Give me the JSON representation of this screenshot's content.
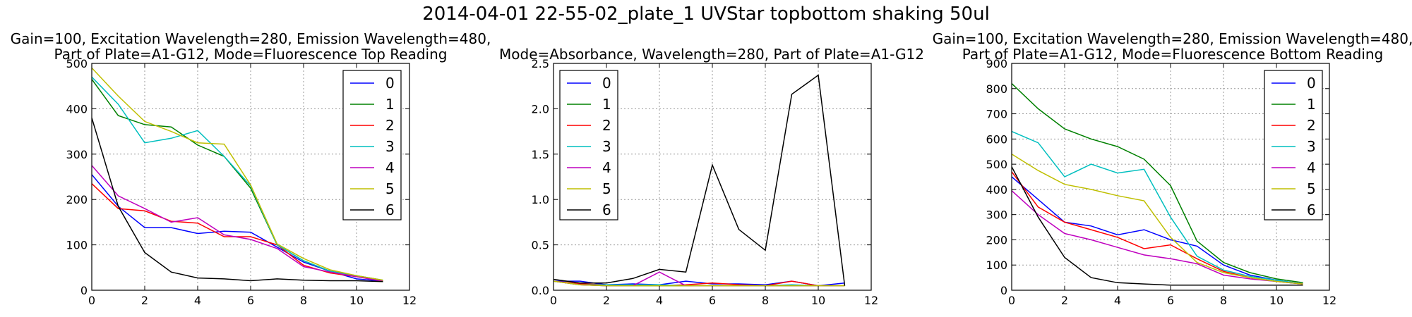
{
  "suptitle": "2014-04-01 22-55-02_plate_1 UVStar topbottom shaking 50ul",
  "colors": [
    "#0000ff",
    "#008000",
    "#ff0000",
    "#00bfbf",
    "#bf00bf",
    "#bfbf00",
    "#000000"
  ],
  "chart_data": [
    {
      "type": "line",
      "title_lines": [
        "Gain=100, Excitation Wavelength=280, Emission Wavelength=480,",
        "Part of Plate=A1-G12, Mode=Fluorescence Top Reading"
      ],
      "xlim": [
        0,
        12
      ],
      "ylim": [
        0,
        500
      ],
      "xticks": [
        0,
        2,
        4,
        6,
        8,
        10,
        12
      ],
      "yticks": [
        0,
        100,
        200,
        300,
        400,
        500
      ],
      "grid": true,
      "legend_position": "upper-right",
      "x": [
        0,
        1,
        2,
        3,
        4,
        5,
        6,
        7,
        8,
        9,
        10,
        11
      ],
      "series": [
        {
          "name": "0",
          "values": [
            255,
            185,
            138,
            138,
            125,
            130,
            128,
            95,
            62,
            42,
            25,
            20
          ]
        },
        {
          "name": "1",
          "values": [
            465,
            385,
            365,
            360,
            320,
            295,
            225,
            100,
            65,
            42,
            32,
            22
          ]
        },
        {
          "name": "2",
          "values": [
            235,
            180,
            175,
            152,
            148,
            118,
            118,
            100,
            55,
            38,
            30,
            20
          ]
        },
        {
          "name": "3",
          "values": [
            470,
            410,
            325,
            335,
            352,
            295,
            230,
            100,
            65,
            42,
            32,
            20
          ]
        },
        {
          "name": "4",
          "values": [
            275,
            208,
            180,
            150,
            160,
            122,
            112,
            92,
            52,
            40,
            30,
            20
          ]
        },
        {
          "name": "5",
          "values": [
            490,
            428,
            372,
            350,
            325,
            322,
            232,
            102,
            70,
            45,
            32,
            22
          ]
        },
        {
          "name": "6",
          "values": [
            380,
            185,
            83,
            40,
            27,
            25,
            21,
            25,
            22,
            21,
            21,
            19
          ]
        }
      ]
    },
    {
      "type": "line",
      "title_lines": [
        "Mode=Absorbance, Wavelength=280, Part of Plate=A1-G12"
      ],
      "xlim": [
        0,
        12
      ],
      "ylim": [
        0,
        2.5
      ],
      "xticks": [
        0,
        2,
        4,
        6,
        8,
        10,
        12
      ],
      "yticks": [
        0.0,
        0.5,
        1.0,
        1.5,
        2.0,
        2.5
      ],
      "ytick_labels": [
        "0.0",
        "0.5",
        "1.0",
        "1.5",
        "2.0",
        "2.5"
      ],
      "grid": true,
      "legend_position": "upper-left",
      "x": [
        0,
        1,
        2,
        3,
        4,
        5,
        6,
        7,
        8,
        9,
        10,
        11
      ],
      "series": [
        {
          "name": "0",
          "values": [
            0.1,
            0.1,
            0.06,
            0.07,
            0.06,
            0.1,
            0.07,
            0.07,
            0.06,
            0.1,
            0.05,
            0.08
          ]
        },
        {
          "name": "1",
          "values": [
            0.1,
            0.06,
            0.05,
            0.05,
            0.05,
            0.05,
            0.05,
            0.05,
            0.05,
            0.05,
            0.05,
            0.05
          ]
        },
        {
          "name": "2",
          "values": [
            0.1,
            0.07,
            0.06,
            0.06,
            0.05,
            0.06,
            0.08,
            0.06,
            0.05,
            0.1,
            0.05,
            0.05
          ]
        },
        {
          "name": "3",
          "values": [
            0.1,
            0.06,
            0.06,
            0.06,
            0.06,
            0.05,
            0.05,
            0.05,
            0.05,
            0.06,
            0.05,
            0.05
          ]
        },
        {
          "name": "4",
          "values": [
            0.1,
            0.06,
            0.05,
            0.05,
            0.2,
            0.05,
            0.05,
            0.05,
            0.05,
            0.05,
            0.05,
            0.05
          ]
        },
        {
          "name": "5",
          "values": [
            0.1,
            0.06,
            0.05,
            0.05,
            0.05,
            0.05,
            0.05,
            0.05,
            0.05,
            0.05,
            0.05,
            0.05
          ]
        },
        {
          "name": "6",
          "values": [
            0.12,
            0.08,
            0.08,
            0.13,
            0.23,
            0.2,
            1.38,
            0.67,
            0.44,
            2.16,
            2.37,
            0.05
          ]
        }
      ]
    },
    {
      "type": "line",
      "title_lines": [
        "Gain=100, Excitation Wavelength=280, Emission Wavelength=480,",
        "Part of Plate=A1-G12, Mode=Fluorescence Bottom Reading"
      ],
      "xlim": [
        0,
        12
      ],
      "ylim": [
        0,
        900
      ],
      "xticks": [
        0,
        2,
        4,
        6,
        8,
        10,
        12
      ],
      "yticks": [
        0,
        100,
        200,
        300,
        400,
        500,
        600,
        700,
        800,
        900
      ],
      "grid": true,
      "legend_position": "upper-right",
      "x": [
        0,
        1,
        2,
        3,
        4,
        5,
        6,
        7,
        8,
        9,
        10,
        11
      ],
      "series": [
        {
          "name": "0",
          "values": [
            450,
            360,
            270,
            255,
            220,
            240,
            200,
            175,
            100,
            60,
            40,
            25
          ]
        },
        {
          "name": "1",
          "values": [
            820,
            720,
            640,
            600,
            570,
            520,
            415,
            195,
            110,
            70,
            45,
            30
          ]
        },
        {
          "name": "2",
          "values": [
            470,
            330,
            270,
            240,
            210,
            165,
            180,
            125,
            75,
            50,
            35,
            25
          ]
        },
        {
          "name": "3",
          "values": [
            630,
            585,
            450,
            500,
            465,
            480,
            290,
            135,
            80,
            55,
            40,
            25
          ]
        },
        {
          "name": "4",
          "values": [
            395,
            300,
            225,
            200,
            170,
            140,
            125,
            105,
            60,
            45,
            35,
            25
          ]
        },
        {
          "name": "5",
          "values": [
            540,
            475,
            420,
            400,
            375,
            355,
            210,
            110,
            70,
            50,
            35,
            25
          ]
        },
        {
          "name": "6",
          "values": [
            490,
            290,
            130,
            50,
            30,
            25,
            20,
            20,
            20,
            20,
            20,
            20
          ]
        }
      ]
    }
  ]
}
